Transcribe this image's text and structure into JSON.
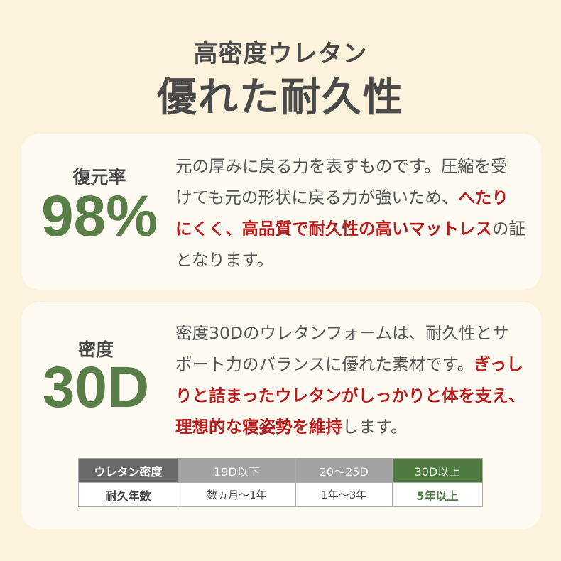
{
  "header": {
    "subtitle": "高密度ウレタン",
    "title": "優れた耐久性"
  },
  "card1": {
    "label": "復元率",
    "value": "98%",
    "lines": [
      [
        "元の厚みに戻る力を表すものです。圧縮を受"
      ],
      [
        "けても元の形状に戻る力が強いため、",
        "へたり"
      ],
      [
        "にくく、高品質で耐久性の高いマットレス",
        "の証"
      ],
      [
        "となります。"
      ]
    ]
  },
  "card2": {
    "label": "密度",
    "value": "30D",
    "lines": [
      [
        "密度30Dのウレタンフォームは、耐久性とサ"
      ],
      [
        "ポート力のバランスに優れた素材です。",
        "ぎっし"
      ],
      [
        "りと詰まったウレタンがしっかりと体を支え、"
      ],
      [
        "理想的な寝姿勢を維持",
        "します。"
      ]
    ]
  },
  "table": {
    "header": [
      "ウレタン密度",
      "19D以下",
      "20～25D",
      "30D以上"
    ],
    "row": [
      "耐久年数",
      "数ヵ月～1年",
      "1年～3年",
      "5年以上"
    ]
  },
  "colors": {
    "accent_green": "#4f7b40",
    "emphasis_red": "#b81c1c",
    "background": "#fdf2dc"
  }
}
